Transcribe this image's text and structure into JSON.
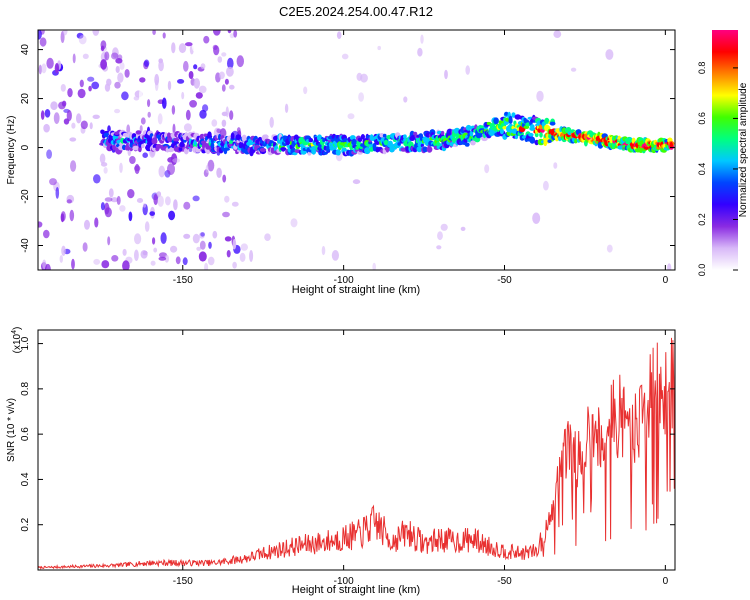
{
  "title": "C2E5.2024.254.00.47.R12",
  "chart_data": [
    {
      "type": "heatmap",
      "xlabel": "Height of straight line (km)",
      "ylabel": "Frequency (Hz)",
      "xlim": [
        -195,
        3
      ],
      "ylim": [
        -50,
        48
      ],
      "xticks": [
        -150,
        -100,
        -50,
        0
      ],
      "yticks": [
        -40,
        -20,
        0,
        20,
        40
      ],
      "colorbar": {
        "label": "Normalized spectral amplitude",
        "range": [
          0,
          0.95
        ],
        "ticks": [
          "0.0",
          "0.2",
          "0.4",
          "0.6",
          "0.8"
        ],
        "colors": [
          "#ffffff",
          "#d8b8f8",
          "#8a2be2",
          "#3300ff",
          "#0044ff",
          "#00c8ff",
          "#00ff80",
          "#40ff00",
          "#ffff00",
          "#ff8000",
          "#ff0000",
          "#ff0080"
        ]
      },
      "ridge": {
        "x": [
          -170,
          -150,
          -120,
          -100,
          -80,
          -70,
          -60,
          -50,
          -45,
          -40,
          -30,
          -20,
          -10,
          0
        ],
        "frequency": [
          3,
          2,
          1,
          1,
          2,
          3,
          5,
          9,
          8,
          7,
          5,
          3,
          1,
          1
        ]
      }
    },
    {
      "type": "line",
      "xlabel": "Height of straight line (km)",
      "ylabel": "SNR (10 * v/v)",
      "yscale_label": "(x10",
      "yscale_exponent": "4",
      "xlim": [
        -195,
        3
      ],
      "ylim": [
        0,
        1.06
      ],
      "xticks": [
        -150,
        -100,
        -50,
        0
      ],
      "yticks": [
        "0.2",
        "0.4",
        "0.6",
        "0.8",
        "1.0"
      ],
      "color": "#e83030",
      "series": [
        {
          "x": [
            -195,
            -170,
            -160,
            -140,
            -130,
            -125,
            -115,
            -105,
            -95,
            -90,
            -85,
            -80,
            -75,
            -70,
            -65,
            -60,
            -55,
            -50,
            -45,
            -40,
            -38,
            -35,
            -33,
            -30,
            -28,
            -25,
            -22,
            -20,
            -18,
            -15,
            -12,
            -10,
            -8,
            -5,
            -3,
            -1,
            0,
            2
          ],
          "values": [
            0.01,
            0.02,
            0.03,
            0.03,
            0.05,
            0.07,
            0.1,
            0.12,
            0.15,
            0.2,
            0.12,
            0.16,
            0.11,
            0.13,
            0.12,
            0.13,
            0.1,
            0.08,
            0.07,
            0.08,
            0.15,
            0.25,
            0.45,
            0.55,
            0.5,
            0.6,
            0.65,
            0.58,
            0.65,
            0.7,
            0.68,
            0.62,
            0.7,
            0.75,
            0.85,
            0.7,
            0.8,
            0.85
          ]
        }
      ]
    }
  ]
}
